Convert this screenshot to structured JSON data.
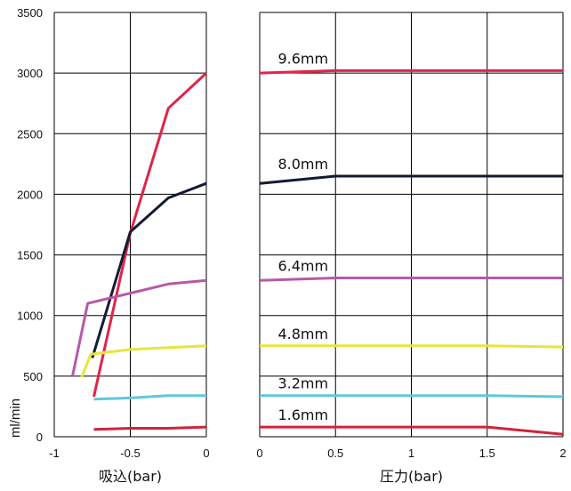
{
  "chart_data": {
    "type": "line",
    "ylabel": "ml/min",
    "yticks": [
      "0",
      "500",
      "1000",
      "1500",
      "2000",
      "2500",
      "3000",
      "3500"
    ],
    "ylim": [
      0,
      3500
    ],
    "grid": true,
    "colors": {
      "red": "#e0244a",
      "navy": "#141a33",
      "purple": "#b45aa8",
      "yellow": "#e6e63a",
      "cyan": "#5ec8d8",
      "darkred": "#d0243a"
    },
    "left": {
      "xlabel": "吸込(bar)",
      "xticks": [
        "-1",
        "-0.5",
        "0"
      ],
      "xlim": [
        -1,
        0
      ],
      "series": [
        {
          "color_key": "red",
          "points": [
            [
              -0.74,
              330
            ],
            [
              -0.5,
              1680
            ],
            [
              -0.25,
              2710
            ],
            [
              0,
              3000
            ]
          ]
        },
        {
          "color_key": "navy",
          "points": [
            [
              -0.75,
              650
            ],
            [
              -0.5,
              1690
            ],
            [
              -0.25,
              1970
            ],
            [
              0,
              2090
            ]
          ]
        },
        {
          "color_key": "purple",
          "points": [
            [
              -0.88,
              500
            ],
            [
              -0.78,
              1100
            ],
            [
              -0.25,
              1260
            ],
            [
              0,
              1290
            ]
          ]
        },
        {
          "color_key": "yellow",
          "points": [
            [
              -0.82,
              490
            ],
            [
              -0.76,
              680
            ],
            [
              -0.5,
              720
            ],
            [
              0,
              750
            ]
          ]
        },
        {
          "color_key": "cyan",
          "points": [
            [
              -0.74,
              310
            ],
            [
              -0.5,
              320
            ],
            [
              -0.25,
              340
            ],
            [
              0,
              340
            ]
          ]
        },
        {
          "color_key": "darkred",
          "points": [
            [
              -0.74,
              60
            ],
            [
              -0.5,
              70
            ],
            [
              -0.25,
              70
            ],
            [
              0,
              80
            ]
          ]
        }
      ]
    },
    "right": {
      "xlabel": "圧力(bar)",
      "xticks": [
        "0",
        "0.5",
        "1",
        "1.5",
        "2"
      ],
      "xlim": [
        0,
        2
      ],
      "series": [
        {
          "name": "9.6mm",
          "color_key": "red",
          "points": [
            [
              0,
              3000
            ],
            [
              0.5,
              3020
            ],
            [
              1,
              3020
            ],
            [
              1.5,
              3020
            ],
            [
              2,
              3020
            ]
          ]
        },
        {
          "name": "8.0mm",
          "color_key": "navy",
          "points": [
            [
              0,
              2090
            ],
            [
              0.5,
              2150
            ],
            [
              1,
              2150
            ],
            [
              1.5,
              2150
            ],
            [
              2,
              2150
            ]
          ]
        },
        {
          "name": "6.4mm",
          "color_key": "purple",
          "points": [
            [
              0,
              1290
            ],
            [
              0.5,
              1310
            ],
            [
              1,
              1310
            ],
            [
              1.5,
              1310
            ],
            [
              2,
              1310
            ]
          ]
        },
        {
          "name": "4.8mm",
          "color_key": "yellow",
          "points": [
            [
              0,
              750
            ],
            [
              0.5,
              750
            ],
            [
              1,
              750
            ],
            [
              1.5,
              750
            ],
            [
              2,
              740
            ]
          ]
        },
        {
          "name": "3.2mm",
          "color_key": "cyan",
          "points": [
            [
              0,
              340
            ],
            [
              0.5,
              340
            ],
            [
              1,
              340
            ],
            [
              1.5,
              340
            ],
            [
              2,
              330
            ]
          ]
        },
        {
          "name": "1.6mm",
          "color_key": "darkred",
          "points": [
            [
              0,
              80
            ],
            [
              0.5,
              80
            ],
            [
              1,
              80
            ],
            [
              1.5,
              80
            ],
            [
              2,
              20
            ]
          ]
        }
      ]
    }
  }
}
